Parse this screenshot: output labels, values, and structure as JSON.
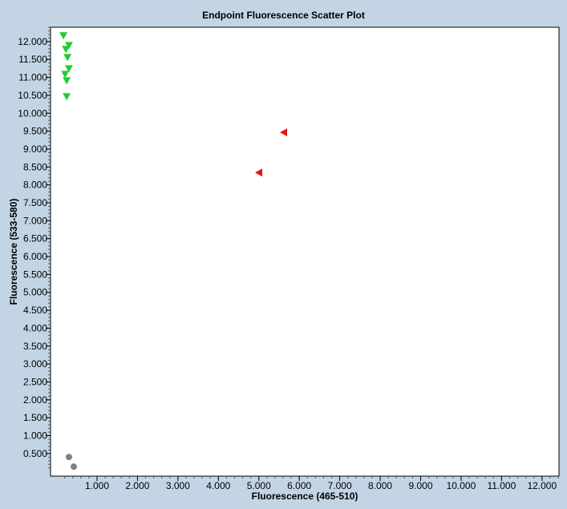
{
  "chart_data": {
    "type": "scatter",
    "title": "Endpoint Fluorescence Scatter Plot",
    "xlabel": "Fluorescence (465-510)",
    "ylabel": "Fluorescence (533-580)",
    "xlim": [
      -150,
      12420
    ],
    "ylim": [
      -130,
      12400
    ],
    "grid": false,
    "xticks": [
      1000,
      2000,
      3000,
      4000,
      5000,
      6000,
      7000,
      8000,
      9000,
      10000,
      11000,
      12000
    ],
    "xtick_labels": [
      "1.000",
      "2.000",
      "3.000",
      "4.000",
      "5.000",
      "6.000",
      "7.000",
      "8.000",
      "9.000",
      "10.000",
      "11.000",
      "12.000"
    ],
    "yticks": [
      500,
      1000,
      1500,
      2000,
      2500,
      3000,
      3500,
      4000,
      4500,
      5000,
      5500,
      6000,
      6500,
      7000,
      7500,
      8000,
      8500,
      9000,
      9500,
      10000,
      10500,
      11000,
      11500,
      12000
    ],
    "ytick_labels": [
      "0.500",
      "1.000",
      "1.500",
      "2.000",
      "2.500",
      "3.000",
      "3.500",
      "4.000",
      "4.500",
      "5.000",
      "5.500",
      "6.000",
      "6.500",
      "7.000",
      "7.500",
      "8.000",
      "8.500",
      "9.000",
      "9.500",
      "10.000",
      "10.500",
      "11.000",
      "11.500",
      "12.000"
    ],
    "series": [
      {
        "marker": "triangle-down",
        "color": "#22cc33",
        "points": [
          [
            170,
            12170
          ],
          [
            305,
            11900
          ],
          [
            230,
            11790
          ],
          [
            270,
            11565
          ],
          [
            305,
            11250
          ],
          [
            210,
            11095
          ],
          [
            250,
            10915
          ],
          [
            250,
            10470
          ]
        ]
      },
      {
        "marker": "triangle-left",
        "color": "#ee1111",
        "points": [
          [
            5620,
            9465
          ],
          [
            5005,
            8345
          ]
        ]
      },
      {
        "marker": "circle",
        "color": "#808080",
        "points": [
          [
            305,
            405
          ],
          [
            425,
            135
          ]
        ]
      }
    ]
  }
}
